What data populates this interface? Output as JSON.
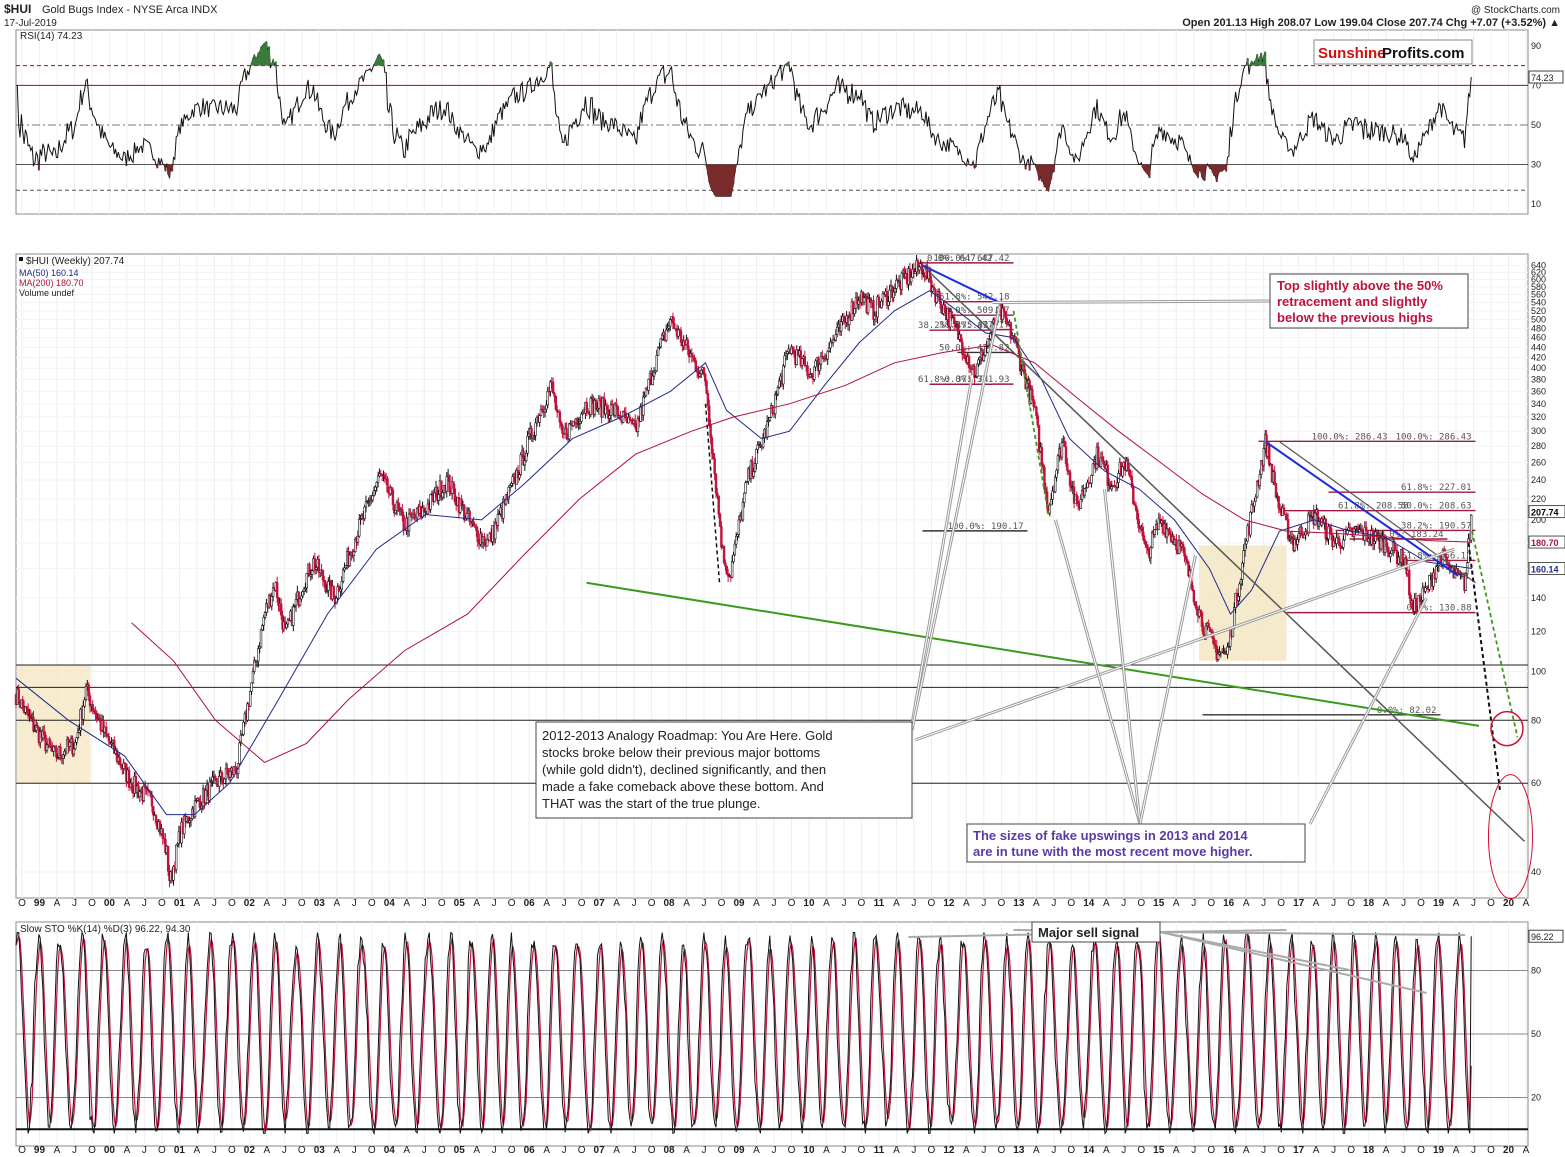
{
  "header": {
    "symbol": "$HUI",
    "name": "Gold Bugs Index - NYSE Arca  INDX",
    "date": "17-Jul-2019",
    "credit": "@ StockCharts.com",
    "ohlc": "Open 201.13  High 208.07  Low 199.04  Close 207.74  Chg +7.07 (+3.52%) ▲",
    "brand_a": "Sunshine",
    "brand_b": "Profits.com"
  },
  "rsi": {
    "legend": "RSI(14) 74.23",
    "last_label": "74.23",
    "ticks": [
      90,
      70,
      50,
      30,
      10
    ],
    "lines": {
      "upper": 70,
      "upper2": 80,
      "mid": 50,
      "lower": 30,
      "lower2": 17
    },
    "colors": {
      "line": "#111111",
      "over": "#3a7a3a",
      "under": "#7a2b2b",
      "red": "#c00000"
    }
  },
  "price_legend": {
    "main": "$HUI (Weekly) 207.74",
    "ma50": "MA(50) 160.14",
    "ma200": "MA(200) 180.70",
    "volume": "Volume undef"
  },
  "price_axis": {
    "ticks": [
      640,
      620,
      600,
      580,
      560,
      540,
      520,
      500,
      480,
      460,
      440,
      420,
      400,
      380,
      360,
      340,
      320,
      300,
      280,
      260,
      240,
      220,
      200,
      180,
      160,
      140,
      120,
      100,
      80,
      60,
      40
    ],
    "labels": [
      {
        "text": "207.74",
        "value": 207.74,
        "bg": "#ffffff",
        "fg": "#000000"
      },
      {
        "text": "180.70",
        "value": 180.7,
        "bg": "#ffffff",
        "fg": "#b0103a"
      },
      {
        "text": "160.14",
        "value": 160.14,
        "bg": "#ffffff",
        "fg": "#1f2a8a"
      }
    ]
  },
  "fibs": [
    {
      "t": "0.0%: 647.42",
      "v": 647.42
    },
    {
      "t": "100.0%: 647.42",
      "v": 647.42
    },
    {
      "t": "61.8%: 542.18",
      "v": 542.18
    },
    {
      "t": "50.0%: 509.67",
      "v": 509.67
    },
    {
      "t": "38.2%: 475.83",
      "v": 475.83
    },
    {
      "t": "38.2%: 477.17",
      "v": 477.17
    },
    {
      "t": "50.0%: 429.82",
      "v": 429.82
    },
    {
      "t": "61.8%: 371.74",
      "v": 371.74
    },
    {
      "t": "0.0%: 371.93",
      "v": 371.93
    },
    {
      "t": "100.0%: 286.43",
      "v": 286.43
    },
    {
      "t": "100.0%: 286.43",
      "v": 286.43
    },
    {
      "t": "61.8%: 227.01",
      "v": 227.01
    },
    {
      "t": "61.8%: 208.58",
      "v": 208.58
    },
    {
      "t": "50.0%: 208.63",
      "v": 208.63
    },
    {
      "t": "38.2%: 190.57",
      "v": 190.57
    },
    {
      "t": "100.0%: 190.17",
      "v": 190.17
    },
    {
      "t": "50.0%: 183.24",
      "v": 183.24
    },
    {
      "t": "61.8%: 166.12",
      "v": 166.12
    },
    {
      "t": "0.0%: 130.88",
      "v": 130.88
    },
    {
      "t": "0.0%: 82.02",
      "v": 82.02
    }
  ],
  "x_axis": {
    "labels": [
      "O",
      "99",
      "A",
      "J",
      "O",
      "00",
      "A",
      "J",
      "O",
      "01",
      "A",
      "J",
      "O",
      "02",
      "A",
      "J",
      "O",
      "03",
      "A",
      "J",
      "O",
      "04",
      "A",
      "J",
      "O",
      "05",
      "A",
      "J",
      "O",
      "06",
      "A",
      "J",
      "O",
      "07",
      "A",
      "J",
      "O",
      "08",
      "A",
      "J",
      "O",
      "09",
      "A",
      "J",
      "O",
      "10",
      "A",
      "J",
      "O",
      "11",
      "A",
      "J",
      "O",
      "12",
      "A",
      "J",
      "O",
      "13",
      "A",
      "J",
      "O",
      "14",
      "A",
      "J",
      "O",
      "15",
      "A",
      "J",
      "O",
      "16",
      "A",
      "J",
      "O",
      "17",
      "A",
      "J",
      "O",
      "18",
      "A",
      "J",
      "O",
      "19",
      "A",
      "J",
      "O",
      "20",
      "A"
    ]
  },
  "annotations": {
    "top_note": [
      "Top slightly above the 50%",
      "retracement and slightly",
      "below the previous highs"
    ],
    "roadmap": [
      "2012-2013 Analogy Roadmap: You Are Here. Gold",
      "stocks broke below their previous major bottoms",
      "(while gold didn't), declined significantly, and then",
      "made a fake comeback above these bottom. And",
      "THAT was the start of the true plunge."
    ],
    "sizes": [
      "The sizes of fake upswings in 2013 and 2014",
      "are in tune with the most recent move higher."
    ],
    "sell": "Major sell signal"
  },
  "sto": {
    "legend": "Slow STO %K(14) %D(3) 96.22, 94.30",
    "last_label": "96.22",
    "ticks": [
      80,
      50,
      20
    ]
  },
  "chart_data": {
    "type": "line",
    "title": "$HUI Gold Bugs Index - NYSE Arca INDX",
    "panels": [
      "RSI(14)",
      "Price (Weekly, log scale)",
      "Slow STO %K(14) %D(3)"
    ],
    "x_range": [
      "1998-09",
      "2020-05"
    ],
    "ylim": [
      35,
      680
    ],
    "y_scale": "log",
    "series": [
      {
        "name": "$HUI (Weekly)",
        "color": "#111111",
        "points": [
          [
            1998.75,
            90
          ],
          [
            1999.0,
            78
          ],
          [
            1999.3,
            68
          ],
          [
            1999.6,
            72
          ],
          [
            1999.75,
            92
          ],
          [
            2000.0,
            76
          ],
          [
            2000.4,
            60
          ],
          [
            2000.7,
            55
          ],
          [
            2000.9,
            44
          ],
          [
            2000.95,
            38
          ],
          [
            2001.1,
            48
          ],
          [
            2001.3,
            54
          ],
          [
            2001.6,
            60
          ],
          [
            2001.9,
            64
          ],
          [
            2002.1,
            92
          ],
          [
            2002.3,
            130
          ],
          [
            2002.45,
            150
          ],
          [
            2002.6,
            118
          ],
          [
            2002.85,
            150
          ],
          [
            2003.0,
            165
          ],
          [
            2003.3,
            140
          ],
          [
            2003.6,
            185
          ],
          [
            2003.95,
            245
          ],
          [
            2004.3,
            195
          ],
          [
            2004.6,
            210
          ],
          [
            2004.9,
            240
          ],
          [
            2005.3,
            190
          ],
          [
            2005.5,
            180
          ],
          [
            2005.9,
            245
          ],
          [
            2006.2,
            320
          ],
          [
            2006.4,
            370
          ],
          [
            2006.55,
            290
          ],
          [
            2006.9,
            340
          ],
          [
            2007.3,
            330
          ],
          [
            2007.6,
            300
          ],
          [
            2007.9,
            420
          ],
          [
            2008.1,
            500
          ],
          [
            2008.4,
            420
          ],
          [
            2008.6,
            380
          ],
          [
            2008.85,
            170
          ],
          [
            2008.95,
            155
          ],
          [
            2009.2,
            240
          ],
          [
            2009.5,
            310
          ],
          [
            2009.8,
            440
          ],
          [
            2010.1,
            390
          ],
          [
            2010.5,
            470
          ],
          [
            2010.8,
            560
          ],
          [
            2011.0,
            520
          ],
          [
            2011.3,
            580
          ],
          [
            2011.7,
            640
          ],
          [
            2011.9,
            560
          ],
          [
            2012.2,
            470
          ],
          [
            2012.45,
            390
          ],
          [
            2012.8,
            520
          ],
          [
            2013.0,
            460
          ],
          [
            2013.3,
            330
          ],
          [
            2013.5,
            210
          ],
          [
            2013.7,
            290
          ],
          [
            2013.9,
            210
          ],
          [
            2014.2,
            270
          ],
          [
            2014.4,
            235
          ],
          [
            2014.6,
            260
          ],
          [
            2014.9,
            170
          ],
          [
            2015.1,
            200
          ],
          [
            2015.4,
            175
          ],
          [
            2015.7,
            125
          ],
          [
            2015.9,
            110
          ],
          [
            2016.05,
            108
          ],
          [
            2016.3,
            175
          ],
          [
            2016.6,
            286
          ],
          [
            2016.8,
            210
          ],
          [
            2017.0,
            180
          ],
          [
            2017.3,
            205
          ],
          [
            2017.6,
            180
          ],
          [
            2017.9,
            190
          ],
          [
            2018.3,
            180
          ],
          [
            2018.6,
            165
          ],
          [
            2018.7,
            132
          ],
          [
            2018.9,
            145
          ],
          [
            2019.1,
            170
          ],
          [
            2019.3,
            155
          ],
          [
            2019.45,
            150
          ],
          [
            2019.55,
            207.74
          ]
        ]
      },
      {
        "name": "MA(50)",
        "color": "#1f2a8a",
        "points": [
          [
            1998.75,
            97
          ],
          [
            1999.5,
            80
          ],
          [
            2000.3,
            68
          ],
          [
            2000.9,
            52
          ],
          [
            2001.3,
            52
          ],
          [
            2001.8,
            60
          ],
          [
            2002.5,
            88
          ],
          [
            2003.2,
            130
          ],
          [
            2003.9,
            175
          ],
          [
            2004.6,
            205
          ],
          [
            2005.4,
            200
          ],
          [
            2006.0,
            235
          ],
          [
            2006.7,
            290
          ],
          [
            2007.4,
            320
          ],
          [
            2008.1,
            360
          ],
          [
            2008.6,
            410
          ],
          [
            2008.9,
            330
          ],
          [
            2009.4,
            290
          ],
          [
            2009.8,
            300
          ],
          [
            2010.3,
            370
          ],
          [
            2010.8,
            450
          ],
          [
            2011.3,
            520
          ],
          [
            2011.8,
            570
          ],
          [
            2012.2,
            520
          ],
          [
            2012.6,
            470
          ],
          [
            2013.0,
            460
          ],
          [
            2013.4,
            380
          ],
          [
            2013.8,
            290
          ],
          [
            2014.3,
            250
          ],
          [
            2014.8,
            230
          ],
          [
            2015.3,
            200
          ],
          [
            2015.8,
            160
          ],
          [
            2016.1,
            130
          ],
          [
            2016.4,
            145
          ],
          [
            2016.8,
            190
          ],
          [
            2017.3,
            200
          ],
          [
            2017.8,
            190
          ],
          [
            2018.3,
            185
          ],
          [
            2018.9,
            165
          ],
          [
            2019.55,
            160.14
          ]
        ]
      },
      {
        "name": "MA(200)",
        "color": "#b0103a",
        "points": [
          [
            2000.4,
            125
          ],
          [
            2001.0,
            105
          ],
          [
            2001.6,
            80
          ],
          [
            2002.3,
            66
          ],
          [
            2002.9,
            72
          ],
          [
            2003.5,
            88
          ],
          [
            2004.3,
            110
          ],
          [
            2005.2,
            130
          ],
          [
            2006.0,
            170
          ],
          [
            2006.8,
            220
          ],
          [
            2007.6,
            270
          ],
          [
            2008.4,
            300
          ],
          [
            2009.0,
            320
          ],
          [
            2009.8,
            340
          ],
          [
            2010.6,
            370
          ],
          [
            2011.3,
            410
          ],
          [
            2012.0,
            430
          ],
          [
            2012.7,
            445
          ],
          [
            2013.3,
            410
          ],
          [
            2013.9,
            350
          ],
          [
            2014.5,
            300
          ],
          [
            2015.1,
            260
          ],
          [
            2015.7,
            225
          ],
          [
            2016.3,
            200
          ],
          [
            2016.9,
            190
          ],
          [
            2017.6,
            188
          ],
          [
            2018.3,
            185
          ],
          [
            2018.9,
            182
          ],
          [
            2019.55,
            180.7
          ]
        ]
      }
    ]
  }
}
